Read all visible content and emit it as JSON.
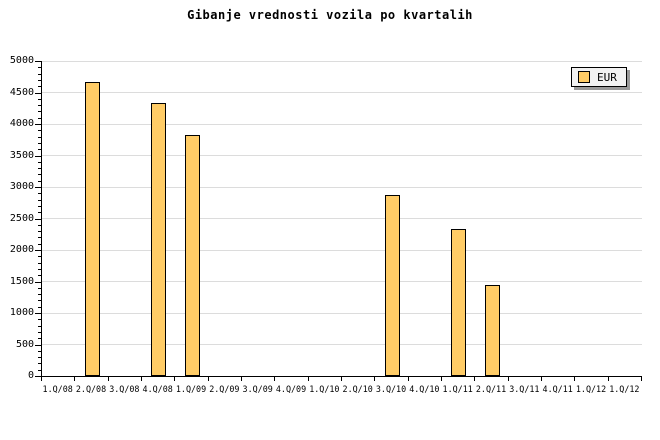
{
  "colors": {
    "bar_fill": "#FFCC66",
    "bar_border": "#000000",
    "grid": "#DCDCDC",
    "axis": "#000000",
    "legend_bg": "#F2F2F2",
    "legend_shadow": "#999999",
    "background": "#FFFFFF"
  },
  "legend": {
    "label": "EUR",
    "swatch_color": "#FFCC66"
  },
  "chart_data": {
    "type": "bar",
    "title": "Gibanje vrednosti vozila po kvartalih",
    "categories": [
      "1.Q/08",
      "2.Q/08",
      "3.Q/08",
      "4.Q/08",
      "1.Q/09",
      "2.Q/09",
      "3.Q/09",
      "4.Q/09",
      "1.Q/10",
      "2.Q/10",
      "3.Q/10",
      "4.Q/10",
      "1.Q/11",
      "2.Q/11",
      "3.Q/11",
      "4.Q/11",
      "1.Q/12",
      "1.Q/12"
    ],
    "series": [
      {
        "name": "EUR",
        "values": [
          null,
          4670,
          null,
          4330,
          3830,
          null,
          null,
          null,
          null,
          null,
          2880,
          null,
          2330,
          1450,
          null,
          null,
          null,
          null
        ]
      }
    ],
    "xlabel": "",
    "ylabel": "",
    "ylim": [
      0,
      5000
    ],
    "yticks": [
      0,
      500,
      1000,
      1500,
      2000,
      2500,
      3000,
      3500,
      4000,
      4500,
      5000
    ],
    "ytick_minor_step": 100,
    "grid": "horizontal",
    "legend_position": "top-right"
  }
}
